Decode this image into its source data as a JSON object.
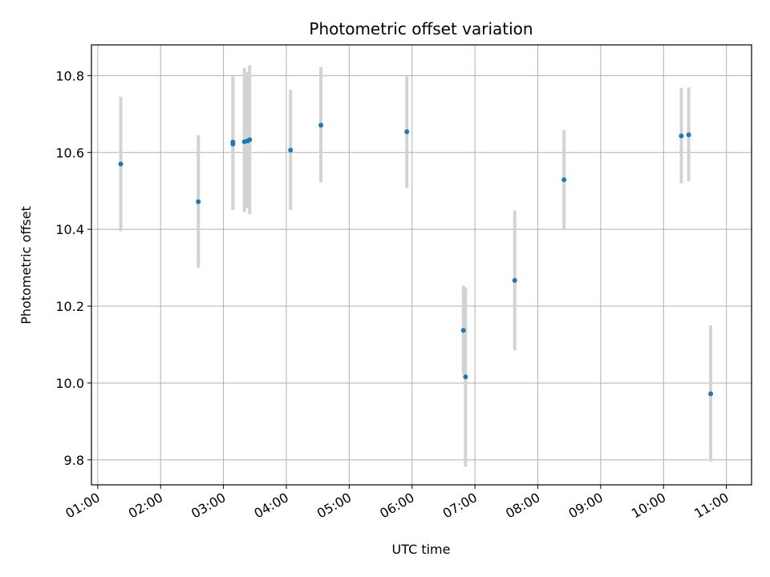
{
  "chart_data": {
    "type": "scatter",
    "title": "Photometric offset variation",
    "xlabel": "UTC time",
    "ylabel": "Photometric offset",
    "xlim": [
      "00:54",
      "11:24"
    ],
    "ylim": [
      9.735,
      10.88
    ],
    "x_ticks": [
      "01:00",
      "02:00",
      "03:00",
      "04:00",
      "05:00",
      "06:00",
      "07:00",
      "08:00",
      "09:00",
      "10:00",
      "11:00"
    ],
    "y_ticks": [
      9.8,
      10.0,
      10.2,
      10.4,
      10.6,
      10.8
    ],
    "grid": true,
    "point_color": "#1f77b4",
    "errorbar_color": "#d3d3d3",
    "points": [
      {
        "time": "01:22",
        "value": 10.57,
        "low": 10.395,
        "high": 10.745
      },
      {
        "time": "02:36",
        "value": 10.472,
        "low": 10.3,
        "high": 10.645
      },
      {
        "time": "03:09",
        "value": 10.622,
        "low": 10.45,
        "high": 10.797
      },
      {
        "time": "03:09",
        "value": 10.627,
        "low": 10.455,
        "high": 10.797
      },
      {
        "time": "03:20",
        "value": 10.628,
        "low": 10.445,
        "high": 10.82
      },
      {
        "time": "03:23",
        "value": 10.63,
        "low": 10.455,
        "high": 10.81
      },
      {
        "time": "03:25",
        "value": 10.633,
        "low": 10.44,
        "high": 10.827
      },
      {
        "time": "04:04",
        "value": 10.606,
        "low": 10.45,
        "high": 10.763
      },
      {
        "time": "04:33",
        "value": 10.671,
        "low": 10.522,
        "high": 10.822
      },
      {
        "time": "05:55",
        "value": 10.654,
        "low": 10.508,
        "high": 10.798
      },
      {
        "time": "06:49",
        "value": 10.137,
        "low": 10.022,
        "high": 10.253
      },
      {
        "time": "06:51",
        "value": 10.016,
        "low": 9.782,
        "high": 10.248
      },
      {
        "time": "07:38",
        "value": 10.267,
        "low": 10.085,
        "high": 10.449
      },
      {
        "time": "08:25",
        "value": 10.529,
        "low": 10.4,
        "high": 10.658
      },
      {
        "time": "10:17",
        "value": 10.643,
        "low": 10.52,
        "high": 10.767
      },
      {
        "time": "10:24",
        "value": 10.646,
        "low": 10.525,
        "high": 10.769
      },
      {
        "time": "10:45",
        "value": 9.972,
        "low": 9.795,
        "high": 10.15
      }
    ]
  }
}
